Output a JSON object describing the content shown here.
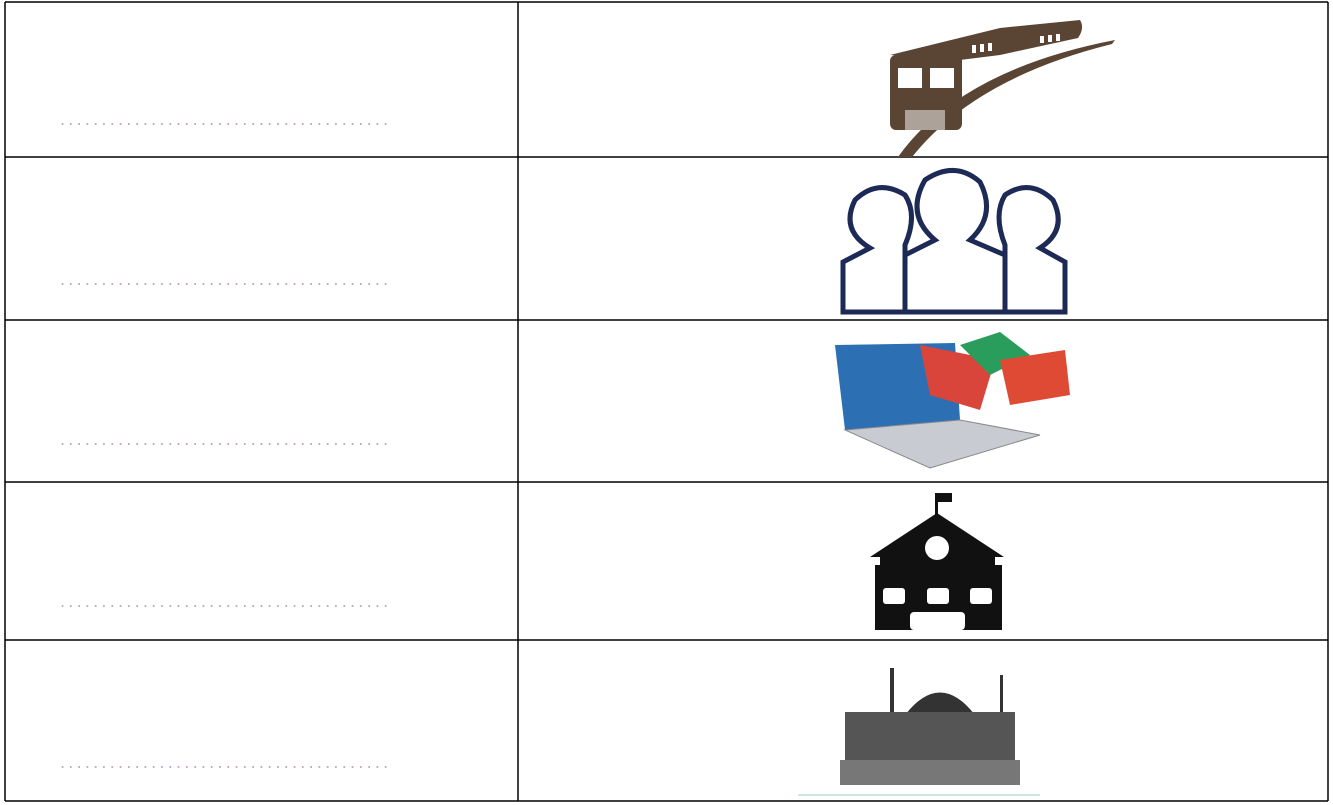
{
  "table": {
    "rows": [
      [
        "........................................"
      ],
      [
        "........................................"
      ],
      [
        "........................................"
      ],
      [
        "........................................"
      ],
      [
        "........................................"
      ]
    ]
  }
}
